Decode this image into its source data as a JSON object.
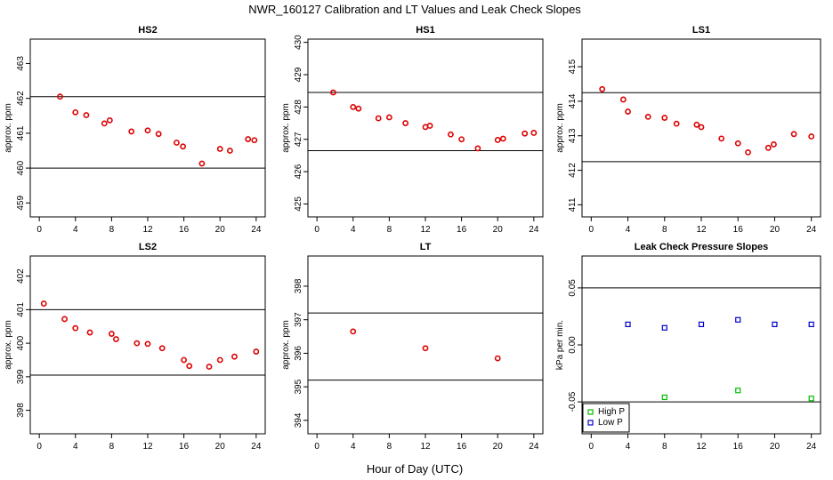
{
  "figure": {
    "title": "NWR_160127  Calibration and LT Values and Leak Check Slopes",
    "xlabel": "Hour of Day (UTC)"
  },
  "chart_data": [
    {
      "type": "scatter",
      "title": "HS2",
      "xlabel": "",
      "ylabel": "approx. ppm",
      "xlim": [
        -1,
        25
      ],
      "ylim": [
        458.6,
        463.7
      ],
      "xticks": [
        "0",
        "4",
        "8",
        "12",
        "16",
        "20",
        "24"
      ],
      "yticks": [
        "459",
        "460",
        "461",
        "462",
        "463"
      ],
      "hlines": [
        462.05,
        460.0
      ],
      "series": [
        {
          "color": "#dd0000",
          "x": [
            2.3,
            4.0,
            5.2,
            7.2,
            7.8,
            10.2,
            12.0,
            13.2,
            15.2,
            15.9,
            18.0,
            20.0,
            21.1,
            23.1,
            23.8
          ],
          "y": [
            462.05,
            461.6,
            461.52,
            461.28,
            461.37,
            461.05,
            461.08,
            460.98,
            460.73,
            460.62,
            460.13,
            460.55,
            460.5,
            460.83,
            460.8
          ]
        }
      ]
    },
    {
      "type": "scatter",
      "title": "HS1",
      "xlabel": "",
      "ylabel": "approx. ppm",
      "xlim": [
        -1,
        25
      ],
      "ylim": [
        424.6,
        430.1
      ],
      "xticks": [
        "0",
        "4",
        "8",
        "12",
        "16",
        "20",
        "24"
      ],
      "yticks": [
        "425",
        "426",
        "427",
        "428",
        "429",
        "430"
      ],
      "hlines": [
        428.45,
        426.65
      ],
      "series": [
        {
          "color": "#dd0000",
          "x": [
            1.8,
            4.0,
            4.6,
            6.8,
            8.0,
            9.8,
            12.0,
            12.5,
            14.8,
            16.0,
            17.8,
            20.0,
            20.6,
            23.0,
            24.0
          ],
          "y": [
            428.45,
            428.0,
            427.95,
            427.65,
            427.68,
            427.5,
            427.38,
            427.42,
            427.15,
            427.0,
            426.72,
            426.98,
            427.02,
            427.18,
            427.2
          ]
        }
      ]
    },
    {
      "type": "scatter",
      "title": "LS1",
      "xlabel": "",
      "ylabel": "approx. ppm",
      "xlim": [
        -1,
        25
      ],
      "ylim": [
        410.65,
        415.8
      ],
      "xticks": [
        "0",
        "4",
        "8",
        "12",
        "16",
        "20",
        "24"
      ],
      "yticks": [
        "411",
        "412",
        "413",
        "414",
        "415"
      ],
      "hlines": [
        414.25,
        412.25
      ],
      "series": [
        {
          "color": "#dd0000",
          "x": [
            1.2,
            3.5,
            4.0,
            6.2,
            8.0,
            9.3,
            11.5,
            12.0,
            14.2,
            16.0,
            17.1,
            19.3,
            19.9,
            22.1,
            24.0
          ],
          "y": [
            414.35,
            414.05,
            413.7,
            413.55,
            413.52,
            413.35,
            413.32,
            413.25,
            412.92,
            412.78,
            412.52,
            412.65,
            412.75,
            413.05,
            412.98
          ]
        }
      ]
    },
    {
      "type": "scatter",
      "title": "LS2",
      "xlabel": "",
      "ylabel": "approx. ppm",
      "xlim": [
        -1,
        25
      ],
      "ylim": [
        397.3,
        402.6
      ],
      "xticks": [
        "0",
        "4",
        "8",
        "12",
        "16",
        "20",
        "24"
      ],
      "yticks": [
        "398",
        "399",
        "400",
        "401",
        "402"
      ],
      "hlines": [
        401.0,
        399.05
      ],
      "series": [
        {
          "color": "#dd0000",
          "x": [
            0.5,
            2.8,
            4.0,
            5.6,
            8.0,
            8.5,
            10.8,
            12.0,
            13.6,
            16.0,
            16.6,
            18.8,
            20.0,
            21.6,
            24.0
          ],
          "y": [
            401.18,
            400.72,
            400.45,
            400.32,
            400.28,
            400.12,
            400.0,
            399.98,
            399.85,
            399.5,
            399.32,
            399.3,
            399.5,
            399.6,
            399.75
          ]
        }
      ]
    },
    {
      "type": "scatter",
      "title": "LT",
      "xlabel": "",
      "ylabel": "approx. ppm",
      "xlim": [
        -1,
        25
      ],
      "ylim": [
        393.6,
        398.9
      ],
      "xticks": [
        "0",
        "4",
        "8",
        "12",
        "16",
        "20",
        "24"
      ],
      "yticks": [
        "394",
        "395",
        "396",
        "397",
        "398"
      ],
      "hlines": [
        397.2,
        395.2
      ],
      "series": [
        {
          "color": "#dd0000",
          "x": [
            4.0,
            12.0,
            20.0
          ],
          "y": [
            396.65,
            396.15,
            395.85
          ]
        }
      ]
    },
    {
      "type": "scatter",
      "title": "Leak Check Pressure Slopes",
      "xlabel": "",
      "ylabel": "kPa per min.",
      "xlim": [
        -1,
        25
      ],
      "ylim": [
        -0.078,
        0.078
      ],
      "xticks": [
        "0",
        "4",
        "8",
        "12",
        "16",
        "20",
        "24"
      ],
      "yticks": [
        "-0.05",
        "0.00",
        "0.05"
      ],
      "ytick_values": [
        -0.05,
        0.0,
        0.05
      ],
      "hlines": [
        0.05,
        -0.05
      ],
      "legend": "bottom-left",
      "series": [
        {
          "name": "High P",
          "color": "#00bb00",
          "x": [
            8.0,
            16.0,
            24.0
          ],
          "y": [
            -0.046,
            -0.04,
            -0.047
          ]
        },
        {
          "name": "Low P",
          "color": "#0000cc",
          "x": [
            4.0,
            8.0,
            12.0,
            16.0,
            20.0,
            24.0
          ],
          "y": [
            0.018,
            0.015,
            0.018,
            0.022,
            0.018,
            0.018
          ]
        }
      ]
    }
  ]
}
